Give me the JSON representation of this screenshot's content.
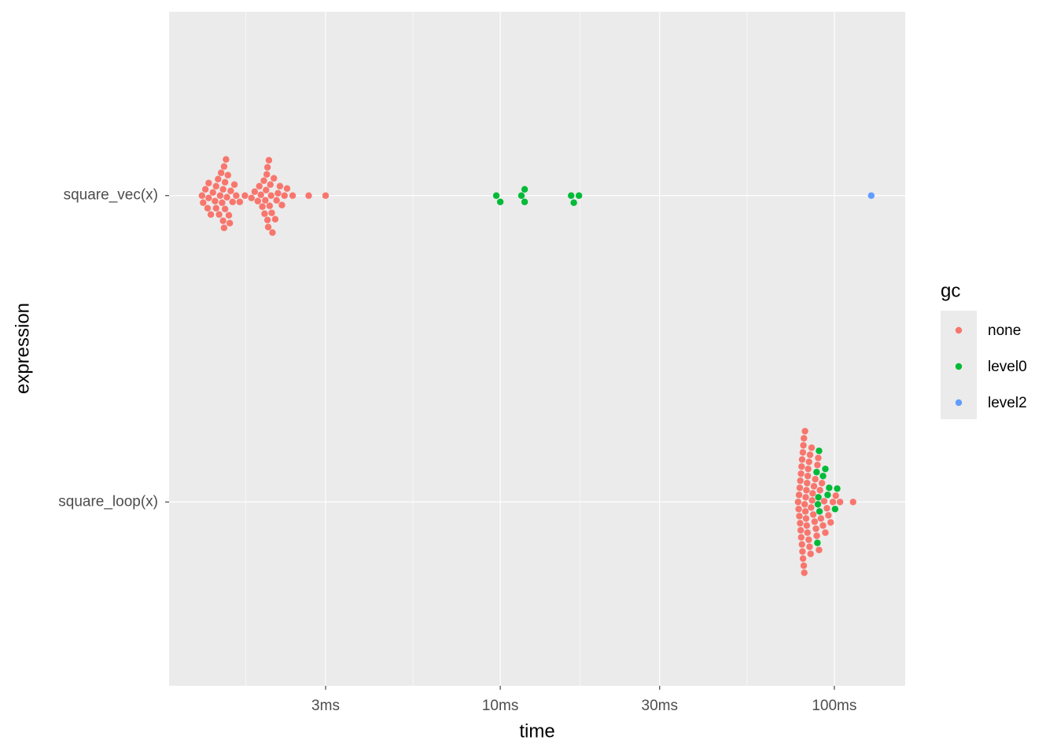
{
  "chart_data": {
    "type": "scatter",
    "x_label": "time",
    "y_label": "expression",
    "categories": [
      "square_loop(x)",
      "square_vec(x)"
    ],
    "xlim": [
      1.02,
      163
    ],
    "log_x": true,
    "xticks": [
      {
        "value": 3,
        "label": "3ms"
      },
      {
        "value": 10,
        "label": "10ms"
      },
      {
        "value": 30,
        "label": "30ms"
      },
      {
        "value": 100,
        "label": "100ms"
      }
    ],
    "xminorticks": [
      1.73,
      5.48,
      17.3,
      54.8
    ],
    "grid": true,
    "legend_title": "gc",
    "legend_position": "right",
    "series": [
      {
        "name": "none",
        "color": "#F8766D",
        "values": [
          1.28,
          1.29,
          1.31,
          1.33,
          1.34,
          1.34,
          1.36,
          1.38,
          1.4,
          1.41,
          1.41,
          1.43,
          1.44,
          1.45,
          1.46,
          1.47,
          1.48,
          1.48,
          1.49,
          1.49,
          1.5,
          1.5,
          1.51,
          1.52,
          1.53,
          1.54,
          1.55,
          1.56,
          1.58,
          1.6,
          1.62,
          1.66,
          1.72,
          1.8,
          1.84,
          1.88,
          1.9,
          1.92,
          1.94,
          1.96,
          1.97,
          1.98,
          1.99,
          2.0,
          2.01,
          2.01,
          2.02,
          2.03,
          2.04,
          2.05,
          2.06,
          2.07,
          2.08,
          2.1,
          2.12,
          2.14,
          2.16,
          2.19,
          2.22,
          2.26,
          2.3,
          2.39,
          2.67,
          3.0,
          77.9,
          78.2,
          78.4,
          78.6,
          78.8,
          79.0,
          79.1,
          79.3,
          79.5,
          79.6,
          79.8,
          80.0,
          80.1,
          80.3,
          80.5,
          80.6,
          80.8,
          81.0,
          81.1,
          81.3,
          81.5,
          81.7,
          81.9,
          82.1,
          82.3,
          82.5,
          82.7,
          82.9,
          83.1,
          83.3,
          83.5,
          83.8,
          84.0,
          84.3,
          84.6,
          84.9,
          85.2,
          85.5,
          85.8,
          86.1,
          86.5,
          86.9,
          87.3,
          87.7,
          88.1,
          88.6,
          89.0,
          89.5,
          90.0,
          90.6,
          91.2,
          91.8,
          92.5,
          93.2,
          94.0,
          95.0,
          96.0,
          97.5,
          99.0,
          101,
          104,
          113.8
        ],
        "categories": [
          "square_vec(x)",
          "square_vec(x)",
          "square_vec(x)",
          "square_vec(x)",
          "square_vec(x)",
          "square_vec(x)",
          "square_vec(x)",
          "square_vec(x)",
          "square_vec(x)",
          "square_vec(x)",
          "square_vec(x)",
          "square_vec(x)",
          "square_vec(x)",
          "square_vec(x)",
          "square_vec(x)",
          "square_vec(x)",
          "square_vec(x)",
          "square_vec(x)",
          "square_vec(x)",
          "square_vec(x)",
          "square_vec(x)",
          "square_vec(x)",
          "square_vec(x)",
          "square_vec(x)",
          "square_vec(x)",
          "square_vec(x)",
          "square_vec(x)",
          "square_vec(x)",
          "square_vec(x)",
          "square_vec(x)",
          "square_vec(x)",
          "square_vec(x)",
          "square_vec(x)",
          "square_vec(x)",
          "square_vec(x)",
          "square_vec(x)",
          "square_vec(x)",
          "square_vec(x)",
          "square_vec(x)",
          "square_vec(x)",
          "square_vec(x)",
          "square_vec(x)",
          "square_vec(x)",
          "square_vec(x)",
          "square_vec(x)",
          "square_vec(x)",
          "square_vec(x)",
          "square_vec(x)",
          "square_vec(x)",
          "square_vec(x)",
          "square_vec(x)",
          "square_vec(x)",
          "square_vec(x)",
          "square_vec(x)",
          "square_vec(x)",
          "square_vec(x)",
          "square_vec(x)",
          "square_vec(x)",
          "square_vec(x)",
          "square_vec(x)",
          "square_vec(x)",
          "square_vec(x)",
          "square_vec(x)",
          "square_vec(x)",
          "square_loop(x)",
          "square_loop(x)",
          "square_loop(x)",
          "square_loop(x)",
          "square_loop(x)",
          "square_loop(x)",
          "square_loop(x)",
          "square_loop(x)",
          "square_loop(x)",
          "square_loop(x)",
          "square_loop(x)",
          "square_loop(x)",
          "square_loop(x)",
          "square_loop(x)",
          "square_loop(x)",
          "square_loop(x)",
          "square_loop(x)",
          "square_loop(x)",
          "square_loop(x)",
          "square_loop(x)",
          "square_loop(x)",
          "square_loop(x)",
          "square_loop(x)",
          "square_loop(x)",
          "square_loop(x)",
          "square_loop(x)",
          "square_loop(x)",
          "square_loop(x)",
          "square_loop(x)",
          "square_loop(x)",
          "square_loop(x)",
          "square_loop(x)",
          "square_loop(x)",
          "square_loop(x)",
          "square_loop(x)",
          "square_loop(x)",
          "square_loop(x)",
          "square_loop(x)",
          "square_loop(x)",
          "square_loop(x)",
          "square_loop(x)",
          "square_loop(x)",
          "square_loop(x)",
          "square_loop(x)",
          "square_loop(x)",
          "square_loop(x)",
          "square_loop(x)",
          "square_loop(x)",
          "square_loop(x)",
          "square_loop(x)",
          "square_loop(x)",
          "square_loop(x)",
          "square_loop(x)",
          "square_loop(x)",
          "square_loop(x)",
          "square_loop(x)",
          "square_loop(x)",
          "square_loop(x)",
          "square_loop(x)",
          "square_loop(x)",
          "square_loop(x)",
          "square_loop(x)"
        ]
      },
      {
        "name": "level0",
        "color": "#00BA38",
        "values": [
          9.73,
          10.0,
          11.57,
          11.83,
          11.83,
          16.3,
          16.6,
          17.2,
          88.5,
          89.0,
          89.3,
          89.6,
          90.0,
          90.3,
          92.5,
          94,
          95.5,
          96.5,
          100.5,
          102
        ],
        "categories": [
          "square_vec(x)",
          "square_vec(x)",
          "square_vec(x)",
          "square_vec(x)",
          "square_vec(x)",
          "square_vec(x)",
          "square_vec(x)",
          "square_vec(x)",
          "square_loop(x)",
          "square_loop(x)",
          "square_loop(x)",
          "square_loop(x)",
          "square_loop(x)",
          "square_loop(x)",
          "square_loop(x)",
          "square_loop(x)",
          "square_loop(x)",
          "square_loop(x)",
          "square_loop(x)",
          "square_loop(x)"
        ]
      },
      {
        "name": "level2",
        "color": "#619CFF",
        "values": [
          129.0
        ],
        "categories": [
          "square_vec(x)"
        ]
      }
    ]
  }
}
